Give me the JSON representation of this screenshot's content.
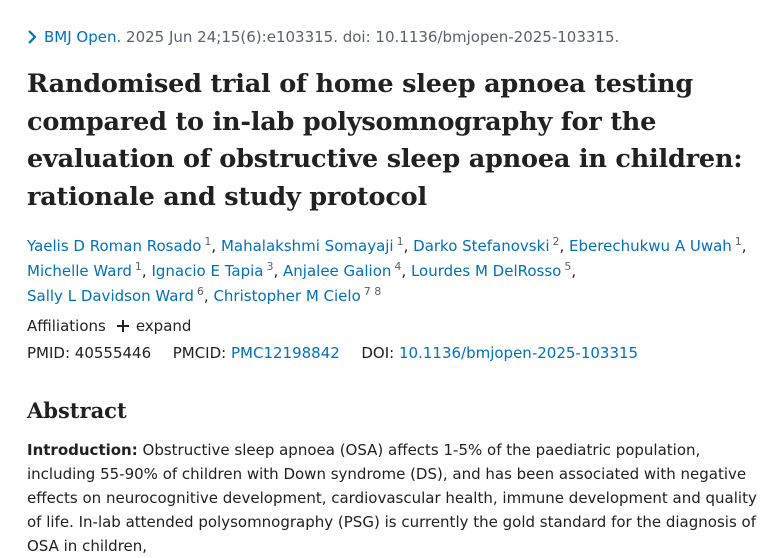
{
  "citation": {
    "journal": "BMJ Open.",
    "details": " 2025 Jun 24;15(6):e103315. doi: 10.1136/bmjopen-2025-103315."
  },
  "title": "Randomised trial of home sleep apnoea testing compared to in-lab polysomnography for the evaluation of obstructive sleep apnoea in children: rationale and study protocol",
  "authors": [
    {
      "name": "Yaelis D Roman Rosado",
      "aff": "1"
    },
    {
      "name": "Mahalakshmi Somayaji",
      "aff": "1"
    },
    {
      "name": "Darko Stefanovski",
      "aff": "2"
    },
    {
      "name": "Eberechukwu A Uwah",
      "aff": "1"
    },
    {
      "name": "Michelle Ward",
      "aff": "1"
    },
    {
      "name": "Ignacio E Tapia",
      "aff": "3"
    },
    {
      "name": "Anjalee Galion",
      "aff": "4"
    },
    {
      "name": "Lourdes M DelRosso",
      "aff": "5"
    },
    {
      "name": "Sally L Davidson Ward",
      "aff": "6"
    },
    {
      "name": "Christopher M Cielo",
      "aff": "7 8"
    }
  ],
  "affiliations": {
    "label": "Affiliations",
    "expand_label": "expand"
  },
  "identifiers": {
    "pmid_label": "PMID:",
    "pmid": "40555446",
    "pmcid_label": "PMCID:",
    "pmcid": "PMC12198842",
    "doi_label": "DOI:",
    "doi": "10.1136/bmjopen-2025-103315"
  },
  "abstract": {
    "heading": "Abstract",
    "intro_label": "Introduction:",
    "intro_text": " Obstructive sleep apnoea (OSA) affects 1-5% of the paediatric population, including 55-90% of children with Down syndrome (DS), and has been associated with negative effects on neurocognitive development, cardiovascular health, immune development and quality of life. In-lab attended polysomnography (PSG) is currently the gold standard for the diagnosis of OSA in children,"
  },
  "colors": {
    "link": "#0071bc",
    "text": "#212121",
    "muted": "#5b616b"
  }
}
